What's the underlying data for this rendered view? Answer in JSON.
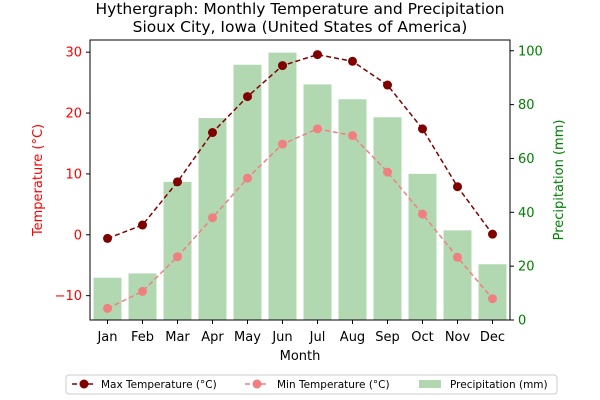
{
  "chart_data": {
    "type": "bar+line",
    "title": "Hythergraph: Monthly Temperature and Precipitation",
    "subtitle": "Sioux City, Iowa (United States of America)",
    "xlabel": "Month",
    "ylabel_left": "Temperature (°C)",
    "ylabel_right": "Precipitation (mm)",
    "categories": [
      "Jan",
      "Feb",
      "Mar",
      "Apr",
      "May",
      "Jun",
      "Jul",
      "Aug",
      "Sep",
      "Oct",
      "Nov",
      "Dec"
    ],
    "ylim_left": [
      -14,
      32
    ],
    "yticks_left": [
      -10,
      0,
      10,
      20,
      30
    ],
    "ylim_right": [
      0,
      104
    ],
    "yticks_right": [
      0,
      20,
      40,
      60,
      80,
      100
    ],
    "grid": false,
    "legend_position": "bottom",
    "series": [
      {
        "name": "Max Temperature (°C)",
        "kind": "line",
        "axis": "left",
        "color": "#800000",
        "style": "dashed",
        "marker": "circle",
        "values": [
          -0.6,
          1.6,
          8.7,
          16.8,
          22.7,
          27.8,
          29.6,
          28.5,
          24.6,
          17.4,
          7.9,
          0.1
        ]
      },
      {
        "name": "Min Temperature (°C)",
        "kind": "line",
        "axis": "left",
        "color": "#f08080",
        "style": "dashed",
        "marker": "circle",
        "values": [
          -12.1,
          -9.3,
          -3.6,
          2.8,
          9.3,
          14.9,
          17.4,
          16.3,
          10.3,
          3.4,
          -3.7,
          -10.5
        ]
      },
      {
        "name": "Precipitation (mm)",
        "kind": "bar",
        "axis": "right",
        "color": "#b2d8b2",
        "values": [
          15.7,
          17.3,
          51.3,
          75.0,
          94.8,
          99.3,
          87.5,
          82.0,
          75.3,
          54.3,
          33.3,
          20.7
        ]
      }
    ],
    "colors": {
      "left_axis": "#ff0000",
      "right_axis": "#008000"
    }
  }
}
